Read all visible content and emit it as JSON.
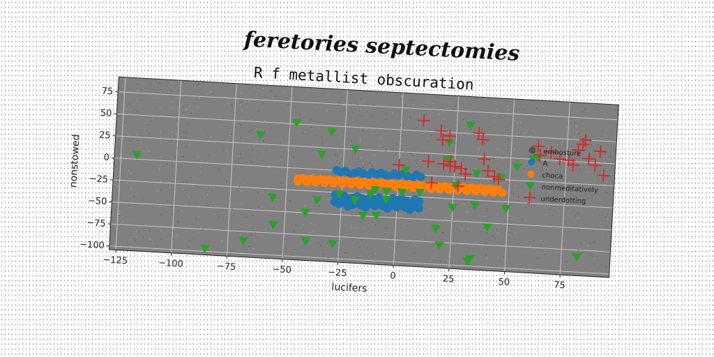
{
  "supertitle": "feretories septectomies",
  "chart_data": {
    "type": "scatter",
    "title": "R f metallist obscuration",
    "xlabel": "lucifers",
    "ylabel": "nonstowed",
    "xlim": [
      -128,
      97
    ],
    "ylim": [
      -104,
      92
    ],
    "xticks": [
      -125,
      -100,
      -75,
      -50,
      -25,
      0,
      25,
      50,
      75
    ],
    "yticks": [
      75,
      50,
      25,
      0,
      -25,
      -50,
      -75,
      -100
    ],
    "grid": true,
    "background": "#808080",
    "legend_position": "right",
    "series": [
      {
        "name": "embosture",
        "marker": "point",
        "color": "#555555",
        "x": [],
        "y": []
      },
      {
        "name": "A",
        "marker": "circle",
        "color": "#1f77b4",
        "x": [
          -28,
          -26,
          -24,
          -22,
          -20,
          -18,
          -16,
          -14,
          -12,
          -10,
          -8,
          -6,
          -4,
          -2,
          0,
          2,
          4,
          6,
          8,
          10,
          -28,
          -26,
          -24,
          -22,
          -20,
          -18,
          -16,
          -14,
          -12,
          -10,
          -8,
          -6,
          -4,
          -2,
          0,
          2,
          4,
          6,
          8,
          10,
          -28,
          -26,
          -24,
          -22,
          -20,
          -18,
          -16,
          -14,
          -12,
          -10,
          -8,
          -6,
          -4,
          -2,
          0,
          2,
          4,
          6,
          8,
          10
        ],
        "y": [
          -28,
          -30,
          -28,
          -32,
          -30,
          -28,
          -30,
          -32,
          -28,
          -30,
          -28,
          -30,
          -32,
          -28,
          -30,
          -28,
          -30,
          -32,
          -28,
          -30,
          -36,
          -38,
          -36,
          -40,
          -38,
          -36,
          -38,
          -40,
          -36,
          -38,
          -36,
          -38,
          -40,
          -36,
          -38,
          -36,
          -38,
          -40,
          -36,
          -38,
          0,
          -2,
          0,
          -4,
          -2,
          0,
          -2,
          -4,
          0,
          -2,
          0,
          -2,
          -4,
          0,
          -2,
          0,
          -2,
          -4,
          0,
          -2
        ]
      },
      {
        "name": "choca",
        "marker": "circle",
        "color": "#ff7f0e",
        "x": [
          -45,
          -43,
          -41,
          -39,
          -37,
          -35,
          -33,
          -31,
          -29,
          -27,
          -25,
          -23,
          -21,
          -19,
          -17,
          -15,
          -13,
          -11,
          -9,
          -7,
          -5,
          -3,
          -1,
          1,
          3,
          5,
          7,
          9,
          11,
          13,
          15,
          17,
          19,
          21,
          23,
          25,
          27,
          29,
          31,
          33,
          35,
          37,
          39,
          41,
          43,
          45,
          -45,
          -41,
          -37,
          -33,
          -29,
          -25,
          -21,
          -17,
          -13,
          -9,
          -5,
          -1,
          3,
          7,
          11,
          15,
          19,
          23,
          27,
          31,
          35,
          39,
          43,
          47
        ],
        "y": [
          -12,
          -11,
          -12,
          -11,
          -12,
          -11,
          -12,
          -11,
          -12,
          -11,
          -12,
          -11,
          -12,
          -11,
          -12,
          -11,
          -12,
          -11,
          -12,
          -11,
          -12,
          -11,
          -12,
          -11,
          -12,
          -11,
          -12,
          -11,
          -12,
          -11,
          -12,
          -11,
          -12,
          -11,
          -12,
          -11,
          -12,
          -11,
          -12,
          -11,
          -12,
          -11,
          -12,
          -11,
          -12,
          -11,
          -15,
          -15,
          -15,
          -15,
          -15,
          -15,
          -15,
          -15,
          -15,
          -15,
          -15,
          -15,
          -15,
          -15,
          -15,
          -15,
          -15,
          -15,
          -15,
          -15,
          -15,
          -15,
          -15,
          -15
        ]
      },
      {
        "name": "nonmeditatively",
        "marker": "triangle-down",
        "color": "#2ca02c",
        "x": [
          -118,
          -85,
          -68,
          -63,
          -56,
          -55,
          -47,
          -41,
          -40,
          -36,
          -35,
          -31,
          -28,
          -26,
          -20,
          -19,
          -15,
          -12,
          -10,
          -9,
          -5,
          -5,
          2,
          3,
          10,
          18,
          20,
          22,
          22,
          25,
          26,
          31,
          33,
          34,
          35,
          35,
          41,
          46,
          49,
          53,
          60,
          62,
          82
        ],
        "y": [
          5,
          -97,
          -86,
          35,
          -35,
          -66,
          51,
          -50,
          -82,
          -35,
          17,
          43,
          -84,
          -27,
          25,
          -33,
          -50,
          -25,
          -20,
          -49,
          -21,
          -30,
          -21,
          4,
          -20,
          -60,
          -79,
          38,
          19,
          -35,
          -10,
          59,
          -95,
          -92,
          5,
          -31,
          -55,
          2,
          -33,
          15,
          25,
          27,
          -83
        ]
      },
      {
        "name": "underdotting",
        "marker": "plus",
        "color": "#d62728",
        "x": [
          0,
          10,
          13,
          15,
          18,
          19,
          20,
          22,
          23,
          23,
          25,
          27,
          28,
          30,
          35,
          37,
          38,
          40,
          43,
          45,
          62,
          63,
          68,
          72,
          76,
          78,
          80,
          80,
          82,
          83,
          85,
          88,
          90,
          92
        ],
        "y": [
          10,
          62,
          16,
          -8,
          51,
          41,
          14,
          46,
          12,
          17,
          12,
          -10,
          10,
          4,
          51,
          44,
          22,
          9,
          3,
          0,
          40,
          30,
          34,
          27,
          26,
          21,
          38,
          38,
          45,
          50,
          29,
          22,
          38,
          11
        ]
      }
    ]
  }
}
